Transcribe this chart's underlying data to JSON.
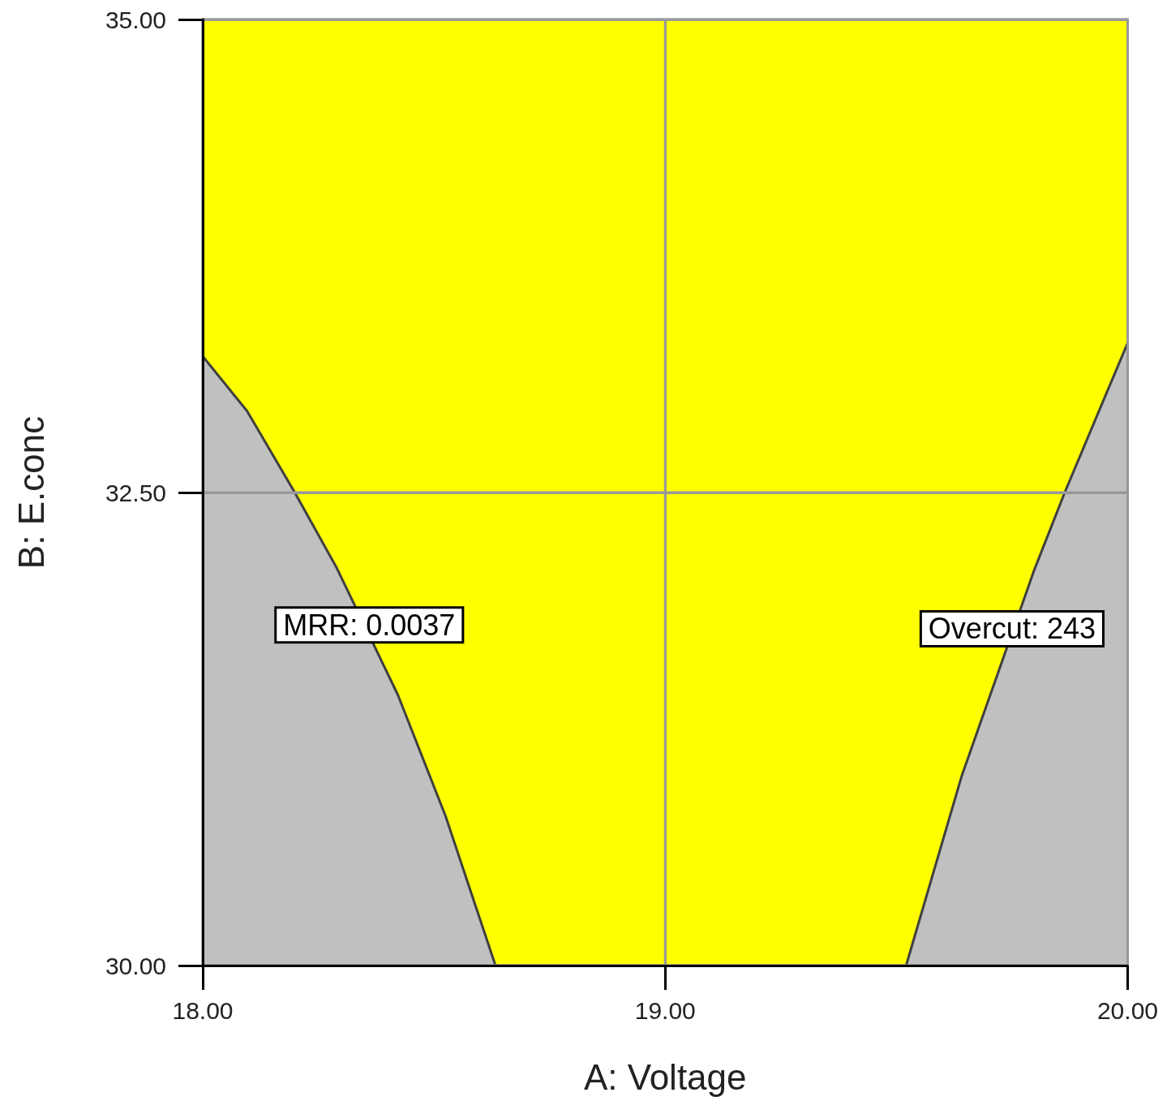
{
  "chart_data": {
    "type": "area",
    "xlabel": "A: Voltage",
    "ylabel": "B: E.conc",
    "xlim": [
      18,
      20
    ],
    "ylim": [
      30,
      35
    ],
    "xticks": [
      {
        "value": 18,
        "label": "18.00"
      },
      {
        "value": 19,
        "label": "19.00"
      },
      {
        "value": 20,
        "label": "20.00"
      }
    ],
    "yticks": [
      {
        "value": 30,
        "label": "30.00"
      },
      {
        "value": 32.5,
        "label": "32.50"
      },
      {
        "value": 35,
        "label": "35.00"
      }
    ],
    "grid": true,
    "line_style": "solid",
    "bands": [
      {
        "axis": "y",
        "from": 30,
        "to": 35,
        "color": "#ffff00"
      }
    ],
    "series": [
      {
        "color": "#c0c0c0",
        "x": [
          18,
          18.096,
          18.199,
          18.29,
          18.422,
          18.525,
          18.633
        ],
        "values": [
          33.22,
          32.93,
          32.5,
          32.1,
          31.43,
          30.79,
          30
        ]
      },
      {
        "color": "#c0c0c0",
        "x": [
          19.521,
          19.641,
          19.798,
          19.864,
          19.95,
          20
        ],
        "values": [
          30,
          31.0,
          32.09,
          32.5,
          33.0,
          33.29
        ]
      }
    ],
    "annotations": [
      {
        "text": "MRR: 0.0037",
        "x": 18.36,
        "y": 31.8
      },
      {
        "text": "Overcut: 243",
        "x": 19.75,
        "y": 31.78
      }
    ]
  }
}
